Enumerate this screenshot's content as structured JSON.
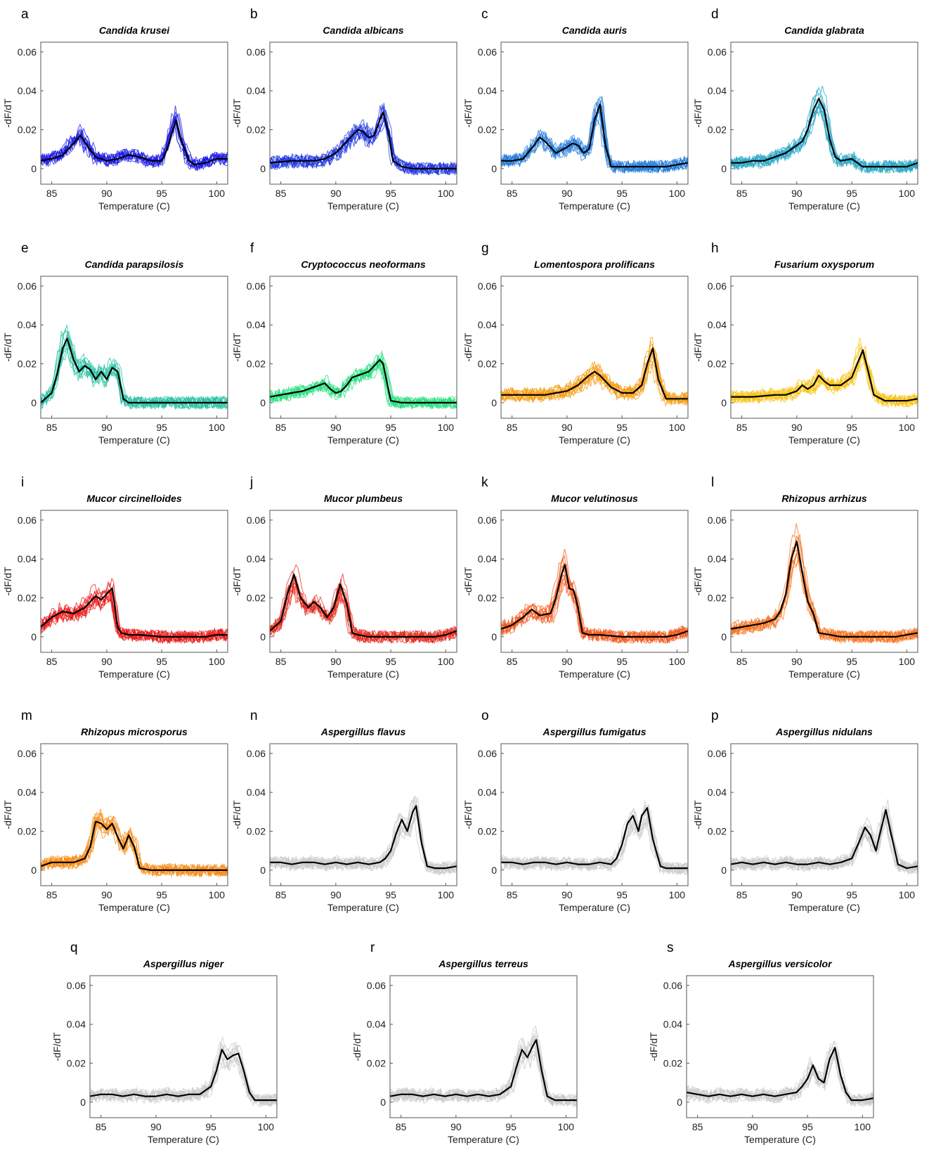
{
  "figure": {
    "common": {
      "xlabel": "Temperature (C)",
      "ylabel": "-dF/dT",
      "xlim": [
        84,
        101
      ],
      "ylim": [
        -0.008,
        0.065
      ],
      "xticks": [
        85,
        90,
        95,
        100
      ],
      "yticks": [
        0,
        0.02,
        0.04,
        0.06
      ],
      "ytick_labels": [
        "0",
        "0.02",
        "0.04",
        "0.06"
      ],
      "grid": false,
      "mean_curve_color": "#000000"
    }
  },
  "chart_data": [
    {
      "type": "line",
      "letter": "a",
      "title": "Candida krusei",
      "color": "#1515e6",
      "x": [
        84,
        85,
        86,
        87,
        87.6,
        88.2,
        89,
        90,
        91,
        92,
        93,
        94,
        95,
        95.5,
        96,
        96.3,
        96.8,
        97.5,
        98,
        99,
        100,
        101
      ],
      "values": [
        0.004,
        0.005,
        0.007,
        0.013,
        0.017,
        0.012,
        0.006,
        0.004,
        0.005,
        0.007,
        0.006,
        0.004,
        0.004,
        0.01,
        0.02,
        0.025,
        0.014,
        0.004,
        0.002,
        0.003,
        0.005,
        0.005
      ]
    },
    {
      "type": "line",
      "letter": "b",
      "title": "Candida albicans",
      "color": "#1b33e0",
      "x": [
        84,
        86,
        88,
        89,
        90,
        91,
        92,
        92.5,
        93,
        93.5,
        94,
        94.3,
        94.8,
        95.2,
        96,
        97,
        98,
        100,
        101
      ],
      "values": [
        0.003,
        0.004,
        0.004,
        0.005,
        0.008,
        0.014,
        0.02,
        0.019,
        0.016,
        0.017,
        0.025,
        0.029,
        0.018,
        0.004,
        0.001,
        0,
        0,
        0,
        0
      ]
    },
    {
      "type": "line",
      "letter": "c",
      "title": "Candida auris",
      "color": "#1e78d8",
      "x": [
        84,
        85,
        86,
        87,
        87.5,
        88,
        89,
        90,
        90.5,
        91,
        91.5,
        92,
        92.5,
        93,
        93.5,
        94,
        95,
        96,
        97,
        98,
        99,
        100,
        101
      ],
      "values": [
        0.004,
        0.004,
        0.005,
        0.012,
        0.016,
        0.014,
        0.008,
        0.011,
        0.013,
        0.012,
        0.008,
        0.01,
        0.025,
        0.033,
        0.012,
        0.001,
        0.001,
        0.001,
        0.001,
        0.001,
        0.001,
        0.002,
        0.003
      ]
    },
    {
      "type": "line",
      "letter": "d",
      "title": "Candida glabrata",
      "color": "#23a4c4",
      "x": [
        84,
        85,
        86,
        87,
        88,
        89,
        90,
        90.5,
        91,
        91.5,
        92,
        92.5,
        93,
        93.5,
        94,
        95,
        96,
        97,
        98,
        99,
        100,
        101
      ],
      "values": [
        0.003,
        0.003,
        0.004,
        0.004,
        0.006,
        0.008,
        0.012,
        0.014,
        0.02,
        0.03,
        0.036,
        0.03,
        0.015,
        0.006,
        0.004,
        0.005,
        0.001,
        0.001,
        0.001,
        0.001,
        0.001,
        0.003
      ]
    },
    {
      "type": "line",
      "letter": "e",
      "title": "Candida parapsilosis",
      "color": "#23c0a0",
      "x": [
        84,
        85,
        85.5,
        86,
        86.4,
        87,
        87.5,
        88,
        88.5,
        89,
        89.5,
        90,
        90.5,
        91,
        91.5,
        92,
        93,
        95,
        97,
        99,
        101
      ],
      "values": [
        0,
        0.005,
        0.015,
        0.028,
        0.033,
        0.022,
        0.016,
        0.019,
        0.017,
        0.012,
        0.016,
        0.012,
        0.018,
        0.016,
        0.002,
        0,
        0,
        0,
        0,
        0,
        0
      ]
    },
    {
      "type": "line",
      "letter": "f",
      "title": "Cryptococcus neoformans",
      "color": "#23e07c",
      "x": [
        84,
        85,
        86,
        87,
        88,
        88.5,
        89,
        89.5,
        90,
        90.5,
        91,
        91.5,
        92,
        92.5,
        93,
        93.5,
        94,
        94.3,
        95,
        96,
        97,
        99,
        101
      ],
      "values": [
        0.003,
        0.004,
        0.005,
        0.006,
        0.008,
        0.009,
        0.01,
        0.007,
        0.005,
        0.006,
        0.009,
        0.013,
        0.014,
        0.015,
        0.016,
        0.019,
        0.022,
        0.02,
        0.001,
        0,
        0,
        0,
        0
      ]
    },
    {
      "type": "line",
      "letter": "g",
      "title": "Lomentospora prolificans",
      "color": "#f59a0a",
      "x": [
        84,
        86,
        88,
        89,
        90,
        91,
        92,
        92.5,
        93,
        94,
        95,
        96,
        96.8,
        97.3,
        97.8,
        98.3,
        99,
        100,
        101
      ],
      "values": [
        0.004,
        0.004,
        0.004,
        0.005,
        0.006,
        0.009,
        0.014,
        0.016,
        0.014,
        0.008,
        0.005,
        0.005,
        0.009,
        0.02,
        0.028,
        0.012,
        0.002,
        0.002,
        0.002
      ]
    },
    {
      "type": "line",
      "letter": "h",
      "title": "Fusarium oxysporum",
      "color": "#f7c20f",
      "x": [
        84,
        86,
        88,
        89,
        90,
        90.5,
        91,
        91.5,
        92,
        92.5,
        93,
        94,
        95,
        95.5,
        96,
        96.5,
        97,
        98,
        99,
        100,
        101
      ],
      "values": [
        0.003,
        0.003,
        0.004,
        0.004,
        0.006,
        0.009,
        0.007,
        0.009,
        0.014,
        0.011,
        0.009,
        0.009,
        0.013,
        0.02,
        0.027,
        0.016,
        0.004,
        0.001,
        0.001,
        0.001,
        0.002
      ]
    },
    {
      "type": "line",
      "letter": "i",
      "title": "Mucor circinelloides",
      "color": "#e81414",
      "x": [
        84,
        85,
        86,
        87,
        88,
        88.5,
        89,
        89.5,
        90,
        90.5,
        91,
        91.3,
        92,
        93,
        95,
        97,
        99,
        100,
        101
      ],
      "values": [
        0.005,
        0.01,
        0.013,
        0.012,
        0.015,
        0.018,
        0.021,
        0.019,
        0.022,
        0.025,
        0.005,
        0.002,
        0.001,
        0.001,
        0,
        0,
        0,
        0.001,
        0.001
      ]
    },
    {
      "type": "line",
      "letter": "j",
      "title": "Mucor plumbeus",
      "color": "#e3281a",
      "x": [
        84,
        85,
        85.6,
        86.2,
        86.8,
        87.5,
        88,
        88.6,
        89.2,
        89.8,
        90.4,
        91,
        91.5,
        92,
        93,
        95,
        97,
        99,
        100,
        101
      ],
      "values": [
        0.003,
        0.008,
        0.022,
        0.032,
        0.02,
        0.015,
        0.018,
        0.015,
        0.01,
        0.015,
        0.027,
        0.017,
        0.002,
        0.001,
        0,
        0,
        0,
        0,
        0.001,
        0.003
      ]
    },
    {
      "type": "line",
      "letter": "k",
      "title": "Mucor velutinosus",
      "color": "#f2571a",
      "x": [
        84,
        85,
        86,
        86.8,
        87.5,
        88.5,
        89,
        89.5,
        89.8,
        90.2,
        90.6,
        91,
        91.4,
        92,
        93,
        95,
        97,
        99,
        100,
        101
      ],
      "values": [
        0.004,
        0.006,
        0.01,
        0.014,
        0.011,
        0.012,
        0.02,
        0.032,
        0.037,
        0.025,
        0.024,
        0.015,
        0.002,
        0.001,
        0.001,
        0,
        0,
        0,
        0.001,
        0.003
      ]
    },
    {
      "type": "line",
      "letter": "l",
      "title": "Rhizopus arrhizus",
      "color": "#f4711c",
      "x": [
        84,
        85,
        86,
        87,
        88,
        88.5,
        89,
        89.5,
        90,
        90.5,
        91,
        91.5,
        92,
        93,
        94,
        95,
        97,
        99,
        100,
        101
      ],
      "values": [
        0.004,
        0.005,
        0.006,
        0.007,
        0.009,
        0.013,
        0.022,
        0.04,
        0.049,
        0.033,
        0.018,
        0.012,
        0.002,
        0.001,
        0,
        0,
        0,
        0,
        0.001,
        0.002
      ]
    },
    {
      "type": "line",
      "letter": "m",
      "title": "Rhizopus microsporus",
      "color": "#f5880f",
      "x": [
        84,
        85,
        86,
        87,
        88,
        88.5,
        89,
        89.5,
        90,
        90.5,
        91,
        91.5,
        92,
        92.5,
        93,
        94,
        95,
        97,
        99,
        101
      ],
      "values": [
        0.002,
        0.004,
        0.004,
        0.004,
        0.006,
        0.012,
        0.025,
        0.024,
        0.021,
        0.024,
        0.017,
        0.011,
        0.018,
        0.012,
        0.001,
        0,
        0,
        0,
        0,
        0
      ]
    },
    {
      "type": "line",
      "letter": "n",
      "title": "Aspergillus flavus",
      "color": "#c8c8c8",
      "x": [
        84,
        85,
        86,
        87,
        88,
        89,
        90,
        91,
        92,
        93,
        94,
        94.5,
        95,
        95.5,
        96,
        96.5,
        97,
        97.3,
        97.8,
        98.3,
        99,
        100,
        101
      ],
      "values": [
        0.004,
        0.004,
        0.003,
        0.004,
        0.004,
        0.003,
        0.004,
        0.003,
        0.004,
        0.003,
        0.004,
        0.006,
        0.01,
        0.019,
        0.026,
        0.02,
        0.03,
        0.033,
        0.014,
        0.002,
        0.001,
        0.001,
        0.002
      ]
    },
    {
      "type": "line",
      "letter": "o",
      "title": "Aspergillus fumigatus",
      "color": "#c8c8c8",
      "x": [
        84,
        85,
        86,
        87,
        88,
        89,
        90,
        91,
        92,
        93,
        94,
        94.5,
        95,
        95.5,
        96,
        96.5,
        96.8,
        97.3,
        97.8,
        98.5,
        99,
        100,
        101
      ],
      "values": [
        0.004,
        0.004,
        0.003,
        0.004,
        0.004,
        0.003,
        0.004,
        0.003,
        0.003,
        0.004,
        0.003,
        0.006,
        0.013,
        0.024,
        0.028,
        0.02,
        0.028,
        0.032,
        0.016,
        0.002,
        0.001,
        0.001,
        0.001
      ]
    },
    {
      "type": "line",
      "letter": "p",
      "title": "Aspergillus nidulans",
      "color": "#c8c8c8",
      "x": [
        84,
        85,
        86,
        87,
        88,
        89,
        90,
        91,
        92,
        93,
        94,
        95,
        95.7,
        96.2,
        96.7,
        97.2,
        97.7,
        98.1,
        98.6,
        99.2,
        100,
        101
      ],
      "values": [
        0.003,
        0.004,
        0.003,
        0.004,
        0.003,
        0.004,
        0.003,
        0.003,
        0.004,
        0.003,
        0.004,
        0.006,
        0.015,
        0.022,
        0.018,
        0.01,
        0.022,
        0.031,
        0.018,
        0.003,
        0.001,
        0.002
      ]
    },
    {
      "type": "line",
      "letter": "q",
      "title": "Aspergillus niger",
      "color": "#c8c8c8",
      "x": [
        84,
        85,
        86,
        87,
        88,
        89,
        90,
        91,
        92,
        93,
        94,
        95,
        95.5,
        96,
        96.5,
        97,
        97.5,
        98,
        98.5,
        99,
        100,
        101
      ],
      "values": [
        0.003,
        0.004,
        0.004,
        0.003,
        0.004,
        0.003,
        0.003,
        0.004,
        0.003,
        0.004,
        0.004,
        0.008,
        0.016,
        0.027,
        0.022,
        0.024,
        0.025,
        0.016,
        0.005,
        0.001,
        0.001,
        0.001
      ]
    },
    {
      "type": "line",
      "letter": "r",
      "title": "Aspergillus terreus",
      "color": "#c8c8c8",
      "x": [
        84,
        85,
        86,
        87,
        88,
        89,
        90,
        91,
        92,
        93,
        94,
        95,
        95.5,
        96,
        96.5,
        97,
        97.3,
        97.8,
        98.3,
        99,
        100,
        101
      ],
      "values": [
        0.003,
        0.004,
        0.004,
        0.003,
        0.004,
        0.003,
        0.004,
        0.003,
        0.004,
        0.003,
        0.004,
        0.008,
        0.018,
        0.027,
        0.023,
        0.029,
        0.032,
        0.016,
        0.003,
        0.001,
        0.001,
        0.001
      ]
    },
    {
      "type": "line",
      "letter": "s",
      "title": "Aspergillus versicolor",
      "color": "#c8c8c8",
      "x": [
        84,
        85,
        86,
        87,
        88,
        89,
        90,
        91,
        92,
        93,
        94,
        94.5,
        95,
        95.5,
        96,
        96.5,
        97,
        97.5,
        98,
        98.5,
        99,
        100,
        101
      ],
      "values": [
        0.005,
        0.004,
        0.003,
        0.004,
        0.003,
        0.004,
        0.003,
        0.004,
        0.003,
        0.004,
        0.005,
        0.008,
        0.012,
        0.019,
        0.012,
        0.01,
        0.022,
        0.028,
        0.014,
        0.005,
        0.001,
        0.001,
        0.002
      ]
    }
  ]
}
